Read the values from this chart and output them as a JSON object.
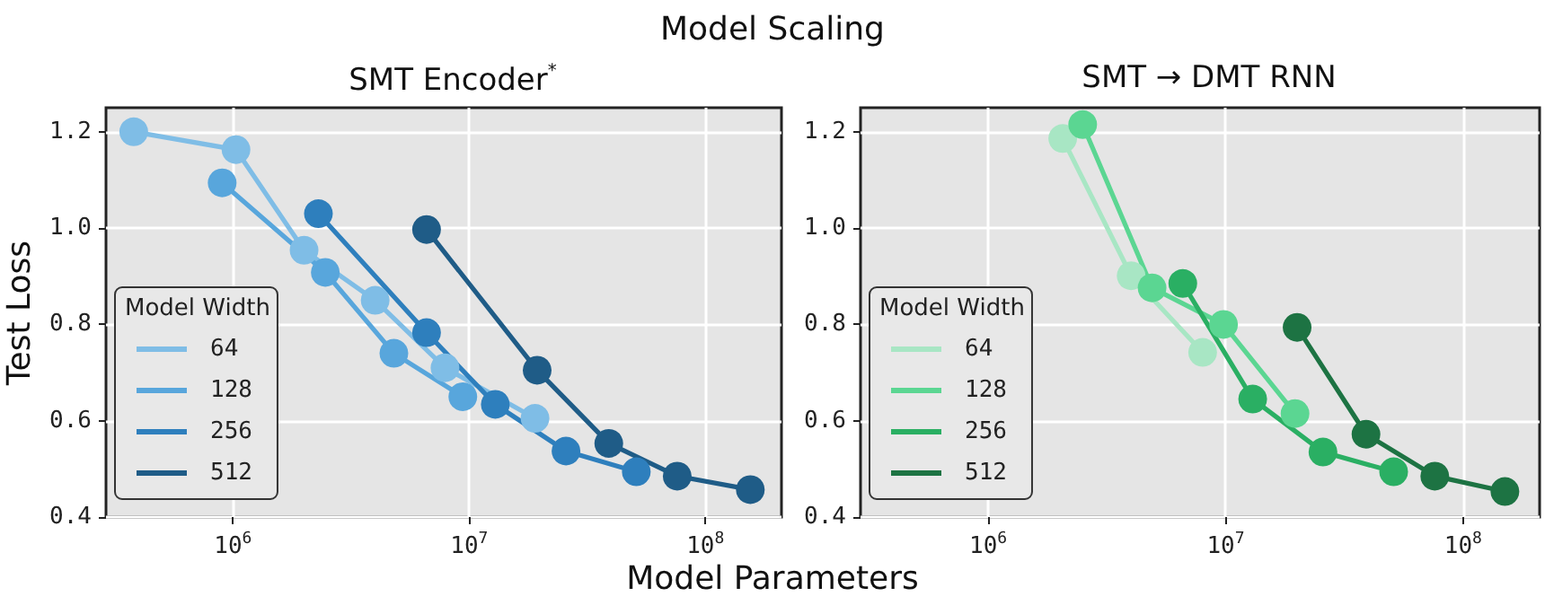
{
  "chart_data": [
    {
      "type": "line",
      "title": "SMT Encoder$^{*}$",
      "annotations": [
        "Model Scaling"
      ],
      "xlabel": "Model Parameters",
      "ylabel": "Test Loss",
      "legend_title": "Model Width",
      "log": "x",
      "grid": true,
      "legend": "bottom left",
      "marker": "circle",
      "line_style": "solid",
      "xlim": [
        290000,
        210000000
      ],
      "ylim": [
        0.4,
        1.25
      ],
      "xticks": [
        {
          "value": 1000000,
          "label": "10$^{6}$"
        },
        {
          "value": 10000000,
          "label": "10$^{7}$"
        },
        {
          "value": 100000000,
          "label": "10$^{8}$"
        }
      ],
      "yticks": [
        0.4,
        0.6,
        0.8,
        {
          "value": 1,
          "label": "1.0"
        },
        1.2
      ],
      "series": [
        {
          "name": "64",
          "color": "#7fbde6",
          "x": [
            380000,
            1030000,
            2000000,
            4000000,
            7900000,
            19000000
          ],
          "values": [
            1.2,
            1.163,
            0.954,
            0.85,
            0.71,
            0.605
          ]
        },
        {
          "name": "128",
          "color": "#58a6dc",
          "x": [
            900000,
            2460000,
            4800000,
            9400000
          ],
          "values": [
            1.094,
            0.908,
            0.74,
            0.65
          ]
        },
        {
          "name": "256",
          "color": "#2e7fbd",
          "x": [
            2300000,
            6600000,
            12900000,
            25700000,
            51000000
          ],
          "values": [
            1.03,
            0.783,
            0.634,
            0.537,
            0.494
          ]
        },
        {
          "name": "512",
          "color": "#1f5c87",
          "x": [
            6600000,
            19400000,
            39000000,
            76000000,
            155000000
          ],
          "values": [
            0.997,
            0.705,
            0.553,
            0.485,
            0.457
          ]
        }
      ]
    },
    {
      "type": "line",
      "title": "SMT → DMT RNN",
      "legend_title": "Model Width",
      "log": "x",
      "grid": true,
      "legend": "bottom left",
      "marker": "circle",
      "line_style": "solid",
      "xlim": [
        290000,
        210000000
      ],
      "ylim": [
        0.4,
        1.25
      ],
      "xticks": [
        {
          "value": 1000000,
          "label": "10$^{6}$"
        },
        {
          "value": 10000000,
          "label": "10$^{7}$"
        },
        {
          "value": 100000000,
          "label": "10$^{8}$"
        }
      ],
      "yticks": [
        0.4,
        0.6,
        0.8,
        {
          "value": 1,
          "label": "1.0"
        },
        1.2
      ],
      "series": [
        {
          "name": "64",
          "color": "#a8e6c4",
          "x": [
            2060000,
            4000000,
            8000000
          ],
          "values": [
            1.186,
            0.901,
            0.742
          ]
        },
        {
          "name": "128",
          "color": "#5bd692",
          "x": [
            2500000,
            4900000,
            9800000,
            19600000
          ],
          "values": [
            1.215,
            0.876,
            0.8,
            0.615
          ]
        },
        {
          "name": "256",
          "color": "#2aaf63",
          "x": [
            6600000,
            13000000,
            25700000,
            51000000
          ],
          "values": [
            0.885,
            0.645,
            0.535,
            0.494
          ]
        },
        {
          "name": "512",
          "color": "#1d7343",
          "x": [
            20000000,
            39000000,
            76000000,
            150000000
          ],
          "values": [
            0.794,
            0.572,
            0.485,
            0.453
          ]
        }
      ]
    }
  ]
}
